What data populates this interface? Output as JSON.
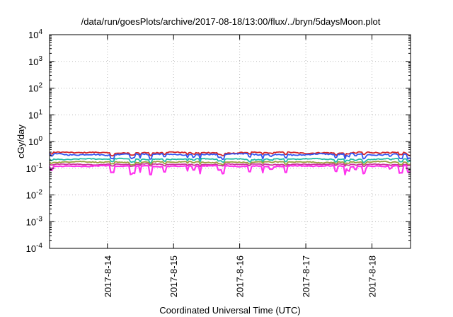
{
  "chart_data": {
    "type": "line",
    "title": "/data/run/goesPlots/archive/2017-08-18/13:00/flux/../bryn/5daysMoon.plot",
    "xlabel": "Coordinated Universal Time (UTC)",
    "ylabel": "cGy/day",
    "y_scale": "log",
    "ylim": [
      0.0001,
      10000
    ],
    "xlim": [
      "2017-08-13 03:00",
      "2017-08-18 14:00"
    ],
    "grid": true,
    "x_tick_labels": [
      "2017-8-14",
      "2017-8-15",
      "2017-8-16",
      "2017-8-17",
      "2017-8-18"
    ],
    "x_tick_values": [
      "2017-08-14",
      "2017-08-15",
      "2017-08-16",
      "2017-08-17",
      "2017-08-18"
    ],
    "y_ticks": [
      {
        "value": 0.0001,
        "base": "10",
        "exp": "-4"
      },
      {
        "value": 0.001,
        "base": "10",
        "exp": "-3"
      },
      {
        "value": 0.01,
        "base": "10",
        "exp": "-2"
      },
      {
        "value": 0.1,
        "base": "10",
        "exp": "-1"
      },
      {
        "value": 1,
        "base": "10",
        "exp": "0"
      },
      {
        "value": 10,
        "base": "10",
        "exp": "1"
      },
      {
        "value": 100,
        "base": "10",
        "exp": "2"
      },
      {
        "value": 1000,
        "base": "10",
        "exp": "3"
      },
      {
        "value": 10000,
        "base": "10",
        "exp": "4"
      }
    ],
    "series": [
      {
        "color": "#d62728",
        "approx_level": 0.38,
        "dip_depth": 0.2,
        "noise": 0.06
      },
      {
        "color": "#3355ee",
        "approx_level": 0.33,
        "dip_depth": 0.35,
        "noise": 0.07
      },
      {
        "color": "#22bbaa",
        "approx_level": 0.22,
        "dip_depth": 0.25,
        "noise": 0.05
      },
      {
        "color": "#9aa03a",
        "approx_level": 0.17,
        "dip_depth": 0.2,
        "noise": 0.05
      },
      {
        "color": "#cc3399",
        "approx_level": 0.14,
        "dip_depth": 0.15,
        "noise": 0.04
      },
      {
        "color": "#ff33ee",
        "approx_level": 0.12,
        "dip_depth": 0.55,
        "noise": 0.05
      }
    ]
  }
}
